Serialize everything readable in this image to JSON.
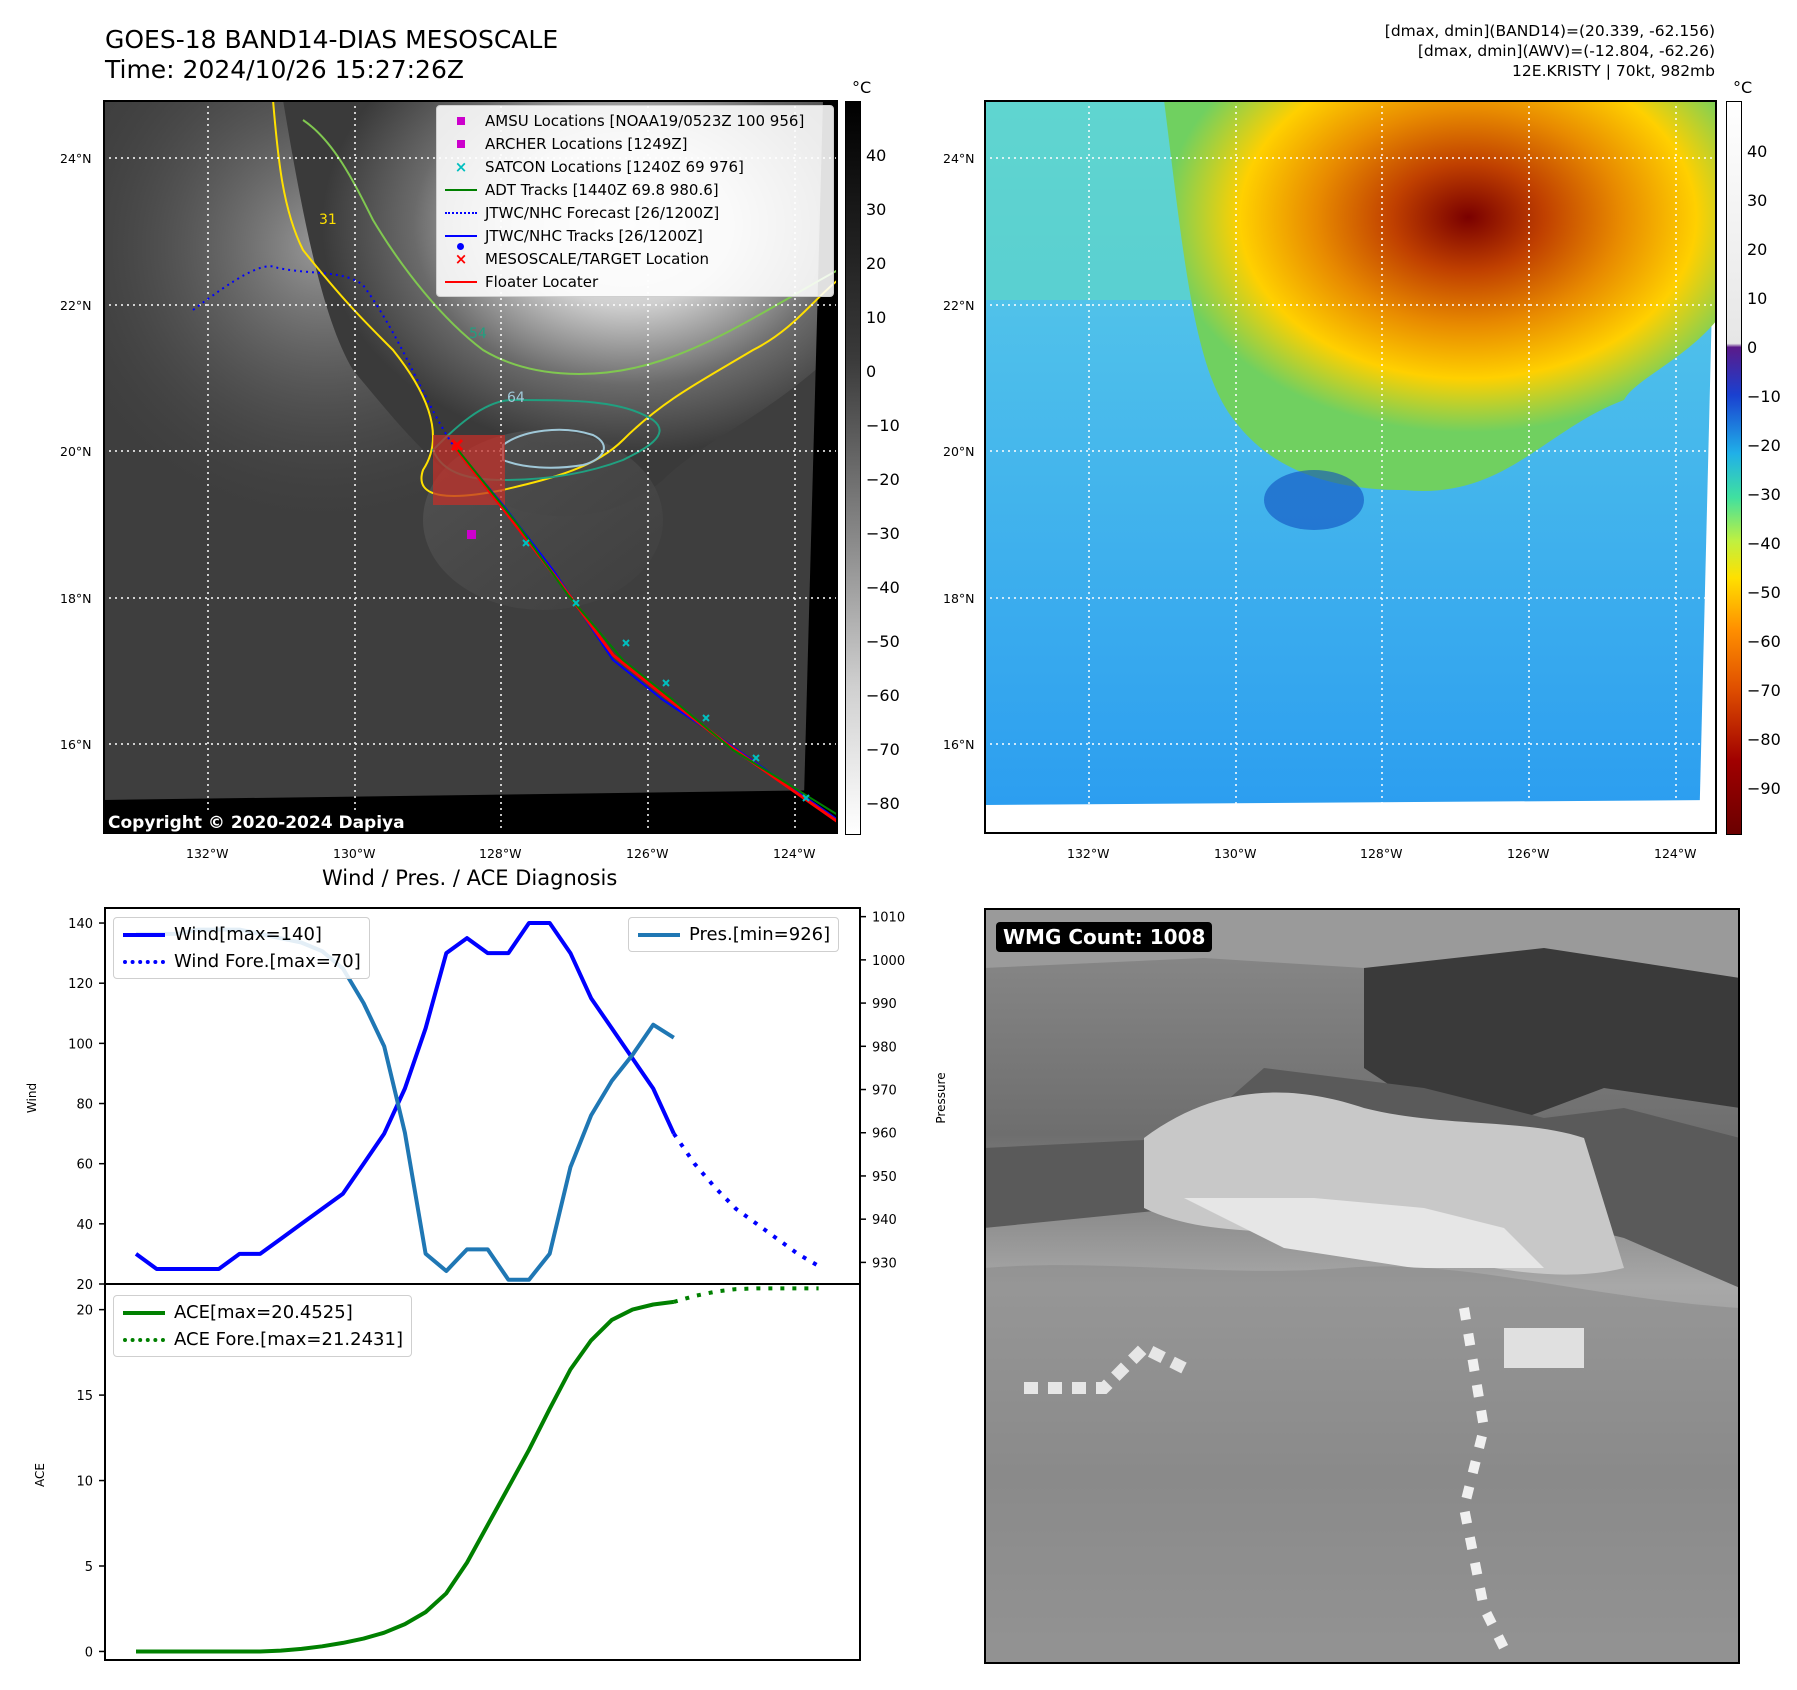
{
  "header": {
    "title_line1": "GOES-18 BAND14-DIAS MESOSCALE",
    "title_line2": "Time: 2024/10/26 15:27:26Z",
    "right_line1": "[dmax, dmin](BAND14)=(20.339, -62.156)",
    "right_line2": "[dmax, dmin](AWV)=(-12.804, -62.26)",
    "right_line3": "12E.KRISTY | 70kt, 982mb"
  },
  "colorbar": {
    "unit": "°C",
    "left_ticks": [
      "40",
      "30",
      "20",
      "10",
      "0",
      "−10",
      "−20",
      "−30",
      "−40",
      "−50",
      "−60",
      "−70",
      "−80"
    ],
    "right_ticks": [
      "40",
      "30",
      "20",
      "10",
      "0",
      "−10",
      "−20",
      "−30",
      "−40",
      "−50",
      "−60",
      "−70",
      "−80",
      "−90"
    ]
  },
  "map": {
    "lat_labels": [
      "24°N",
      "22°N",
      "20°N",
      "18°N",
      "16°N"
    ],
    "lon_labels": [
      "132°W",
      "130°W",
      "128°W",
      "126°W",
      "124°W"
    ],
    "contour_labels": [
      "31",
      "54",
      "64"
    ],
    "copyright": "Copyright © 2020-2024 Dapiya",
    "legend": [
      {
        "label": "AMSU Locations [NOAA19/0523Z 100 956]",
        "color": "#cc00cc",
        "symbol": "square"
      },
      {
        "label": "ARCHER Locations [1249Z]",
        "color": "#cc00cc",
        "symbol": "square"
      },
      {
        "label": "SATCON Locations [1240Z 69 976]",
        "color": "#00bfbf",
        "symbol": "x"
      },
      {
        "label": "ADT Tracks [1440Z 69.8 980.6]",
        "color": "#008000",
        "symbol": "line"
      },
      {
        "label": "JTWC/NHC Forecast [26/1200Z]",
        "color": "#0000ff",
        "symbol": "dotted"
      },
      {
        "label": "JTWC/NHC Tracks [26/1200Z]",
        "color": "#0000ff",
        "symbol": "line-dot"
      },
      {
        "label": "MESOSCALE/TARGET Location",
        "color": "#ff0000",
        "symbol": "x"
      },
      {
        "label": "Floater Locater",
        "color": "#ff0000",
        "symbol": "line"
      }
    ]
  },
  "wmg": {
    "label": "WMG Count: 1008"
  },
  "chart_data": [
    {
      "type": "line",
      "title": "Wind / Pres. / ACE Diagnosis",
      "ylabel": "Wind",
      "ylabel_right": "Pressure",
      "ylim": [
        20,
        145
      ],
      "ylim_right": [
        925,
        1012
      ],
      "yticks": [
        "140",
        "120",
        "100",
        "80",
        "60",
        "40",
        "20"
      ],
      "yticks_right": [
        "1010",
        "1000",
        "990",
        "980",
        "970",
        "960",
        "950",
        "940",
        "930"
      ],
      "series": [
        {
          "name": "Wind[max=140]",
          "color": "#0000ff",
          "style": "solid",
          "axis": "left",
          "x": [
            0,
            1,
            2,
            3,
            4,
            5,
            6,
            7,
            8,
            9,
            10,
            11,
            12,
            13,
            14,
            15,
            16,
            17,
            18,
            19,
            20,
            21,
            22,
            23,
            24,
            25,
            26
          ],
          "values": [
            30,
            25,
            25,
            25,
            25,
            30,
            30,
            35,
            40,
            45,
            50,
            60,
            70,
            85,
            105,
            130,
            135,
            130,
            130,
            140,
            140,
            130,
            115,
            105,
            95,
            85,
            70
          ]
        },
        {
          "name": "Wind Fore.[max=70]",
          "color": "#0000ff",
          "style": "dotted",
          "axis": "left",
          "x": [
            26,
            27,
            28,
            29,
            30,
            31,
            32,
            33
          ],
          "values": [
            70,
            60,
            52,
            45,
            40,
            35,
            30,
            26
          ]
        },
        {
          "name": "Pres.[min=926]",
          "color": "#1f77b4",
          "style": "solid",
          "axis": "right",
          "x": [
            0,
            1,
            2,
            3,
            4,
            5,
            6,
            7,
            8,
            9,
            10,
            11,
            12,
            13,
            14,
            15,
            16,
            17,
            18,
            19,
            20,
            21,
            22,
            23,
            24,
            25,
            26
          ],
          "values": [
            1006,
            1006,
            1006,
            1007,
            1007,
            1007,
            1006,
            1005,
            1004,
            1002,
            998,
            990,
            980,
            960,
            932,
            928,
            933,
            933,
            926,
            926,
            932,
            952,
            964,
            972,
            978,
            985,
            982
          ]
        }
      ]
    },
    {
      "type": "line",
      "ylabel": "ACE",
      "ylim": [
        -0.5,
        21.5
      ],
      "yticks": [
        "20",
        "15",
        "10",
        "5",
        "0"
      ],
      "series": [
        {
          "name": "ACE[max=20.4525]",
          "color": "#008000",
          "style": "solid",
          "x": [
            0,
            1,
            2,
            3,
            4,
            5,
            6,
            7,
            8,
            9,
            10,
            11,
            12,
            13,
            14,
            15,
            16,
            17,
            18,
            19,
            20,
            21,
            22,
            23,
            24,
            25,
            26
          ],
          "values": [
            0,
            0,
            0,
            0,
            0,
            0,
            0,
            0.05,
            0.15,
            0.3,
            0.5,
            0.75,
            1.1,
            1.6,
            2.3,
            3.4,
            5.2,
            7.4,
            9.6,
            11.8,
            14.2,
            16.5,
            18.2,
            19.4,
            20.0,
            20.3,
            20.45
          ]
        },
        {
          "name": "ACE Fore.[max=21.2431]",
          "color": "#008000",
          "style": "dotted",
          "x": [
            26,
            27,
            28,
            29,
            30,
            31,
            32,
            33
          ],
          "values": [
            20.45,
            20.8,
            21.05,
            21.2,
            21.24,
            21.24,
            21.24,
            21.24
          ]
        }
      ]
    }
  ]
}
